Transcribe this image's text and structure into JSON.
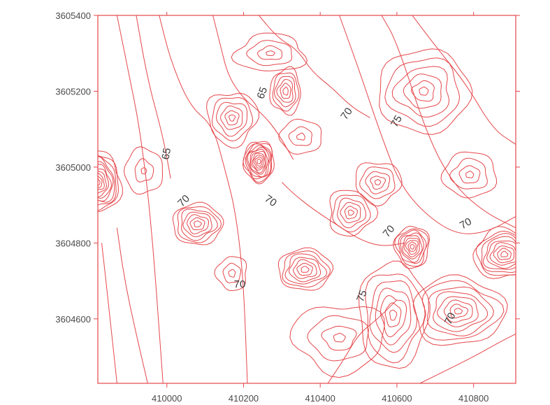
{
  "chart_data": {
    "type": "contour",
    "title": "",
    "xlabel": "",
    "ylabel": "",
    "xlim": [
      409820,
      410910
    ],
    "ylim": [
      3604430,
      3605400
    ],
    "grid": false,
    "line_color": "#e5474b",
    "frame_color": "#e5474b",
    "x_ticks": [
      {
        "value": 410000,
        "label": "410000"
      },
      {
        "value": 410200,
        "label": "410200"
      },
      {
        "value": 410400,
        "label": "410400"
      },
      {
        "value": 410600,
        "label": "410600"
      },
      {
        "value": 410800,
        "label": "410800"
      }
    ],
    "y_ticks": [
      {
        "value": 3605400,
        "label": "3605400"
      },
      {
        "value": 3605200,
        "label": "3605200"
      },
      {
        "value": 3605000,
        "label": "3605000"
      },
      {
        "value": 3604800,
        "label": "3604800"
      },
      {
        "value": 3604600,
        "label": "3604600"
      }
    ],
    "contour_labels": [
      {
        "text": "65",
        "x": 410250,
        "y": 3605195,
        "angle": -70
      },
      {
        "text": "65",
        "x": 410000,
        "y": 3605035,
        "angle": -80
      },
      {
        "text": "70",
        "x": 410470,
        "y": 3605140,
        "angle": -55
      },
      {
        "text": "75",
        "x": 410600,
        "y": 3605120,
        "angle": -60
      },
      {
        "text": "70",
        "x": 410045,
        "y": 3604910,
        "angle": -45
      },
      {
        "text": "70",
        "x": 410270,
        "y": 3604910,
        "angle": 35
      },
      {
        "text": "70",
        "x": 410580,
        "y": 3604830,
        "angle": -50
      },
      {
        "text": "70",
        "x": 410780,
        "y": 3604850,
        "angle": -30
      },
      {
        "text": "70",
        "x": 410190,
        "y": 3604690,
        "angle": 0
      },
      {
        "text": "75",
        "x": 410510,
        "y": 3604660,
        "angle": -70
      },
      {
        "text": "70",
        "x": 410740,
        "y": 3604600,
        "angle": -65
      }
    ],
    "centers": [
      {
        "x": 409820,
        "y": 3604960,
        "rx": 60,
        "ry": 80,
        "rings": 11,
        "step": 1.0
      },
      {
        "x": 409940,
        "y": 3604990,
        "rx": 50,
        "ry": 60,
        "rings": 3,
        "step": 1.8
      },
      {
        "x": 410080,
        "y": 3604850,
        "rx": 65,
        "ry": 55,
        "rings": 7,
        "step": 1.0
      },
      {
        "x": 410170,
        "y": 3605130,
        "rx": 65,
        "ry": 70,
        "rings": 6,
        "step": 1.2
      },
      {
        "x": 410240,
        "y": 3605015,
        "rx": 40,
        "ry": 55,
        "rings": 11,
        "step": 0.9
      },
      {
        "x": 410310,
        "y": 3605200,
        "rx": 40,
        "ry": 60,
        "rings": 6,
        "step": 1.0
      },
      {
        "x": 410270,
        "y": 3605300,
        "rx": 90,
        "ry": 50,
        "rings": 4,
        "step": 1.5
      },
      {
        "x": 410360,
        "y": 3604730,
        "rx": 70,
        "ry": 55,
        "rings": 7,
        "step": 1.0
      },
      {
        "x": 410480,
        "y": 3604880,
        "rx": 60,
        "ry": 60,
        "rings": 6,
        "step": 1.2
      },
      {
        "x": 410550,
        "y": 3604960,
        "rx": 60,
        "ry": 55,
        "rings": 5,
        "step": 1.3
      },
      {
        "x": 410640,
        "y": 3604790,
        "rx": 45,
        "ry": 55,
        "rings": 9,
        "step": 1.0
      },
      {
        "x": 410670,
        "y": 3605200,
        "rx": 120,
        "ry": 110,
        "rings": 6,
        "step": 1.3
      },
      {
        "x": 410790,
        "y": 3604980,
        "rx": 70,
        "ry": 60,
        "rings": 4,
        "step": 1.4
      },
      {
        "x": 410880,
        "y": 3604770,
        "rx": 80,
        "ry": 65,
        "rings": 9,
        "step": 1.0
      },
      {
        "x": 410760,
        "y": 3604620,
        "rx": 120,
        "ry": 90,
        "rings": 8,
        "step": 1.2
      },
      {
        "x": 410590,
        "y": 3604610,
        "rx": 90,
        "ry": 140,
        "rings": 7,
        "step": 1.2
      },
      {
        "x": 410450,
        "y": 3604550,
        "rx": 120,
        "ry": 90,
        "rings": 4,
        "step": 1.5
      },
      {
        "x": 410170,
        "y": 3604720,
        "rx": 40,
        "ry": 45,
        "rings": 3,
        "step": 1.4
      },
      {
        "x": 410350,
        "y": 3605080,
        "rx": 55,
        "ry": 45,
        "rings": 3,
        "step": 1.5
      }
    ],
    "flow_lines": [
      {
        "x": [
          409870,
          409900,
          409930,
          409960,
          409990
        ],
        "y": [
          3605400,
          3605250,
          3605100,
          3604850,
          3604430
        ]
      },
      {
        "x": [
          409920,
          409950,
          409990,
          410010
        ],
        "y": [
          3605400,
          3605230,
          3605080,
          3604970
        ]
      },
      {
        "x": [
          409980,
          410010,
          410060,
          410120,
          410150,
          410180,
          410200,
          410210
        ],
        "y": [
          3605400,
          3605280,
          3605160,
          3605110,
          3605000,
          3604880,
          3604700,
          3604430
        ]
      },
      {
        "x": [
          409870,
          409890,
          409920,
          409950
        ],
        "y": [
          3604840,
          3604700,
          3604560,
          3604430
        ]
      },
      {
        "x": [
          409830,
          409850,
          409870
        ],
        "y": [
          3604800,
          3604620,
          3604430
        ]
      },
      {
        "x": [
          410120,
          410140,
          410160,
          410200,
          410250,
          410290,
          410330
        ],
        "y": [
          3605400,
          3605320,
          3605240,
          3605180,
          3605140,
          3605090,
          3605020
        ]
      },
      {
        "x": [
          410560,
          410600,
          410680,
          410750,
          410830,
          410910
        ],
        "y": [
          3605400,
          3605330,
          3605080,
          3604950,
          3604880,
          3604840
        ]
      },
      {
        "x": [
          410640,
          410700,
          410780,
          410850,
          410910
        ],
        "y": [
          3605400,
          3605320,
          3605220,
          3605100,
          3605060
        ]
      },
      {
        "x": [
          410450,
          410500,
          410560,
          410610,
          410680,
          410760,
          410840,
          410910
        ],
        "y": [
          3605400,
          3605260,
          3605080,
          3604950,
          3604870,
          3604820,
          3604830,
          3604870
        ]
      },
      {
        "x": [
          410300,
          410330,
          410380,
          410440,
          410500,
          410560,
          410620
        ],
        "y": [
          3604960,
          3604930,
          3604890,
          3604850,
          3604810,
          3604790,
          3604800
        ]
      },
      {
        "x": [
          410420,
          410460,
          410500,
          410550,
          410600
        ],
        "y": [
          3604430,
          3604490,
          3604560,
          3604600,
          3604650
        ]
      },
      {
        "x": [
          410660,
          410720,
          410800,
          410870,
          410910
        ],
        "y": [
          3604430,
          3604460,
          3604500,
          3604540,
          3604560
        ]
      },
      {
        "x": [
          410240,
          410290,
          410340,
          410380,
          410430,
          410480,
          410530
        ],
        "y": [
          3605400,
          3605340,
          3605310,
          3605250,
          3605210,
          3605160,
          3605130
        ]
      }
    ]
  }
}
